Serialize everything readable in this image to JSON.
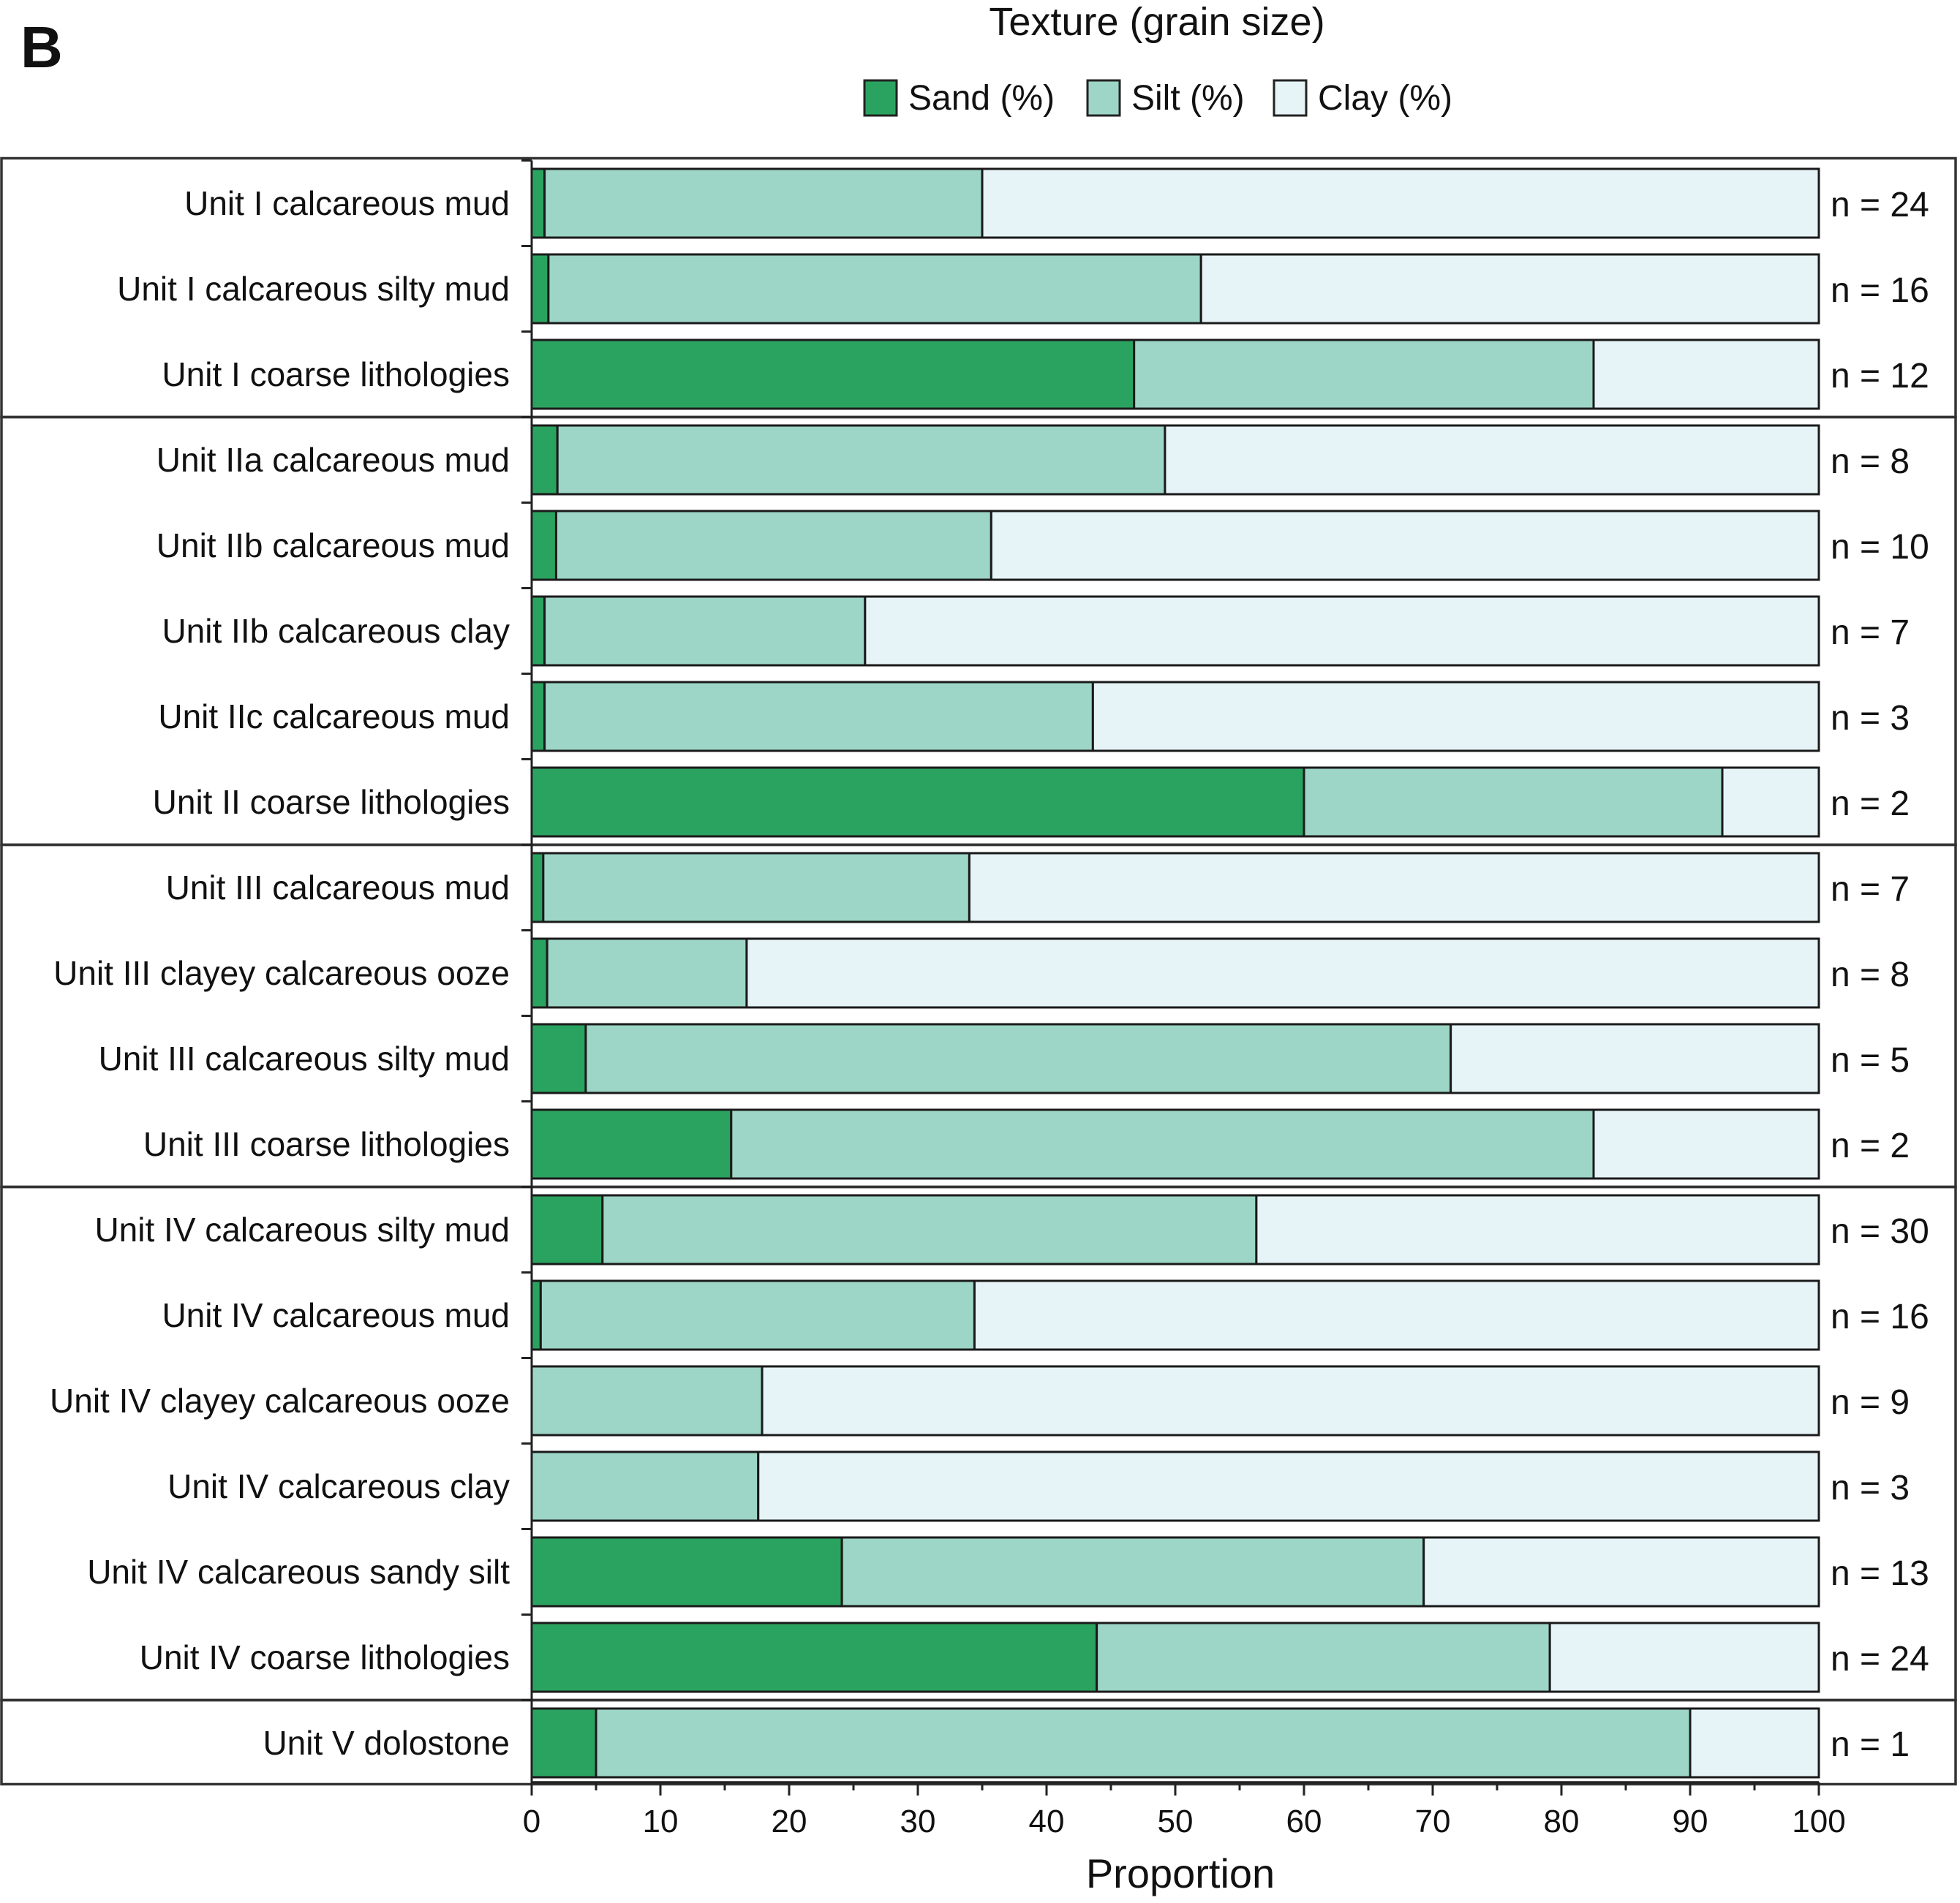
{
  "panel_label": "B",
  "chart_data": {
    "type": "bar",
    "orientation": "horizontal",
    "stacked": true,
    "title": "Texture (grain size)",
    "xlabel": "Proportion",
    "ylabel": "",
    "xlim": [
      0,
      100
    ],
    "x_ticks": [
      "0",
      "10",
      "20",
      "30",
      "40",
      "50",
      "60",
      "70",
      "80",
      "90",
      "100"
    ],
    "legend_position": "top-center",
    "categories": [
      "Unit I calcareous mud",
      "Unit I calcareous silty mud",
      "Unit I coarse lithologies",
      "Unit IIa calcareous mud",
      "Unit IIb calcareous mud",
      "Unit IIb calcareous clay",
      "Unit IIc calcareous mud",
      "Unit II coarse lithologies",
      "Unit III calcareous mud",
      "Unit III clayey calcareous ooze",
      "Unit III calcareous silty mud",
      "Unit III coarse lithologies",
      "Unit IV calcareous silty mud",
      "Unit IV calcareous mud",
      "Unit IV clayey calcareous ooze",
      "Unit IV calcareous clay",
      "Unit IV calcareous sandy silt",
      "Unit IV coarse lithologies",
      "Unit V dolostone"
    ],
    "counts": [
      "n = 24",
      "n = 16",
      "n = 12",
      "n = 8",
      "n = 10",
      "n = 7",
      "n = 3",
      "n = 2",
      "n = 7",
      "n = 8",
      "n = 5",
      "n = 2",
      "n = 30",
      "n = 16",
      "n = 9",
      "n = 3",
      "n = 13",
      "n = 24",
      "n = 1"
    ],
    "groups": [
      {
        "first": 0,
        "last": 2
      },
      {
        "first": 3,
        "last": 7
      },
      {
        "first": 8,
        "last": 11
      },
      {
        "first": 12,
        "last": 17
      },
      {
        "first": 18,
        "last": 18
      }
    ],
    "series": [
      {
        "name": "Sand (%)",
        "color": "#2ba360",
        "values": [
          1.0,
          1.3,
          46.8,
          2.0,
          1.9,
          1.0,
          1.0,
          60.0,
          0.9,
          1.2,
          4.2,
          15.5,
          5.5,
          0.7,
          0.0,
          0.0,
          24.1,
          43.9,
          5.0
        ]
      },
      {
        "name": "Silt (%)",
        "color": "#9dd6c6",
        "values": [
          34.0,
          50.7,
          35.7,
          47.2,
          33.8,
          24.9,
          42.6,
          32.5,
          33.1,
          15.5,
          67.2,
          67.0,
          50.8,
          33.7,
          17.9,
          17.6,
          45.2,
          35.2,
          85.0
        ]
      },
      {
        "name": "Clay (%)",
        "color": "#e6f4f8",
        "values": [
          65.0,
          48.0,
          17.5,
          50.8,
          64.3,
          74.1,
          56.4,
          7.5,
          66.0,
          83.3,
          28.6,
          17.5,
          43.7,
          65.6,
          82.1,
          82.4,
          30.7,
          20.9,
          10.0
        ]
      }
    ]
  }
}
